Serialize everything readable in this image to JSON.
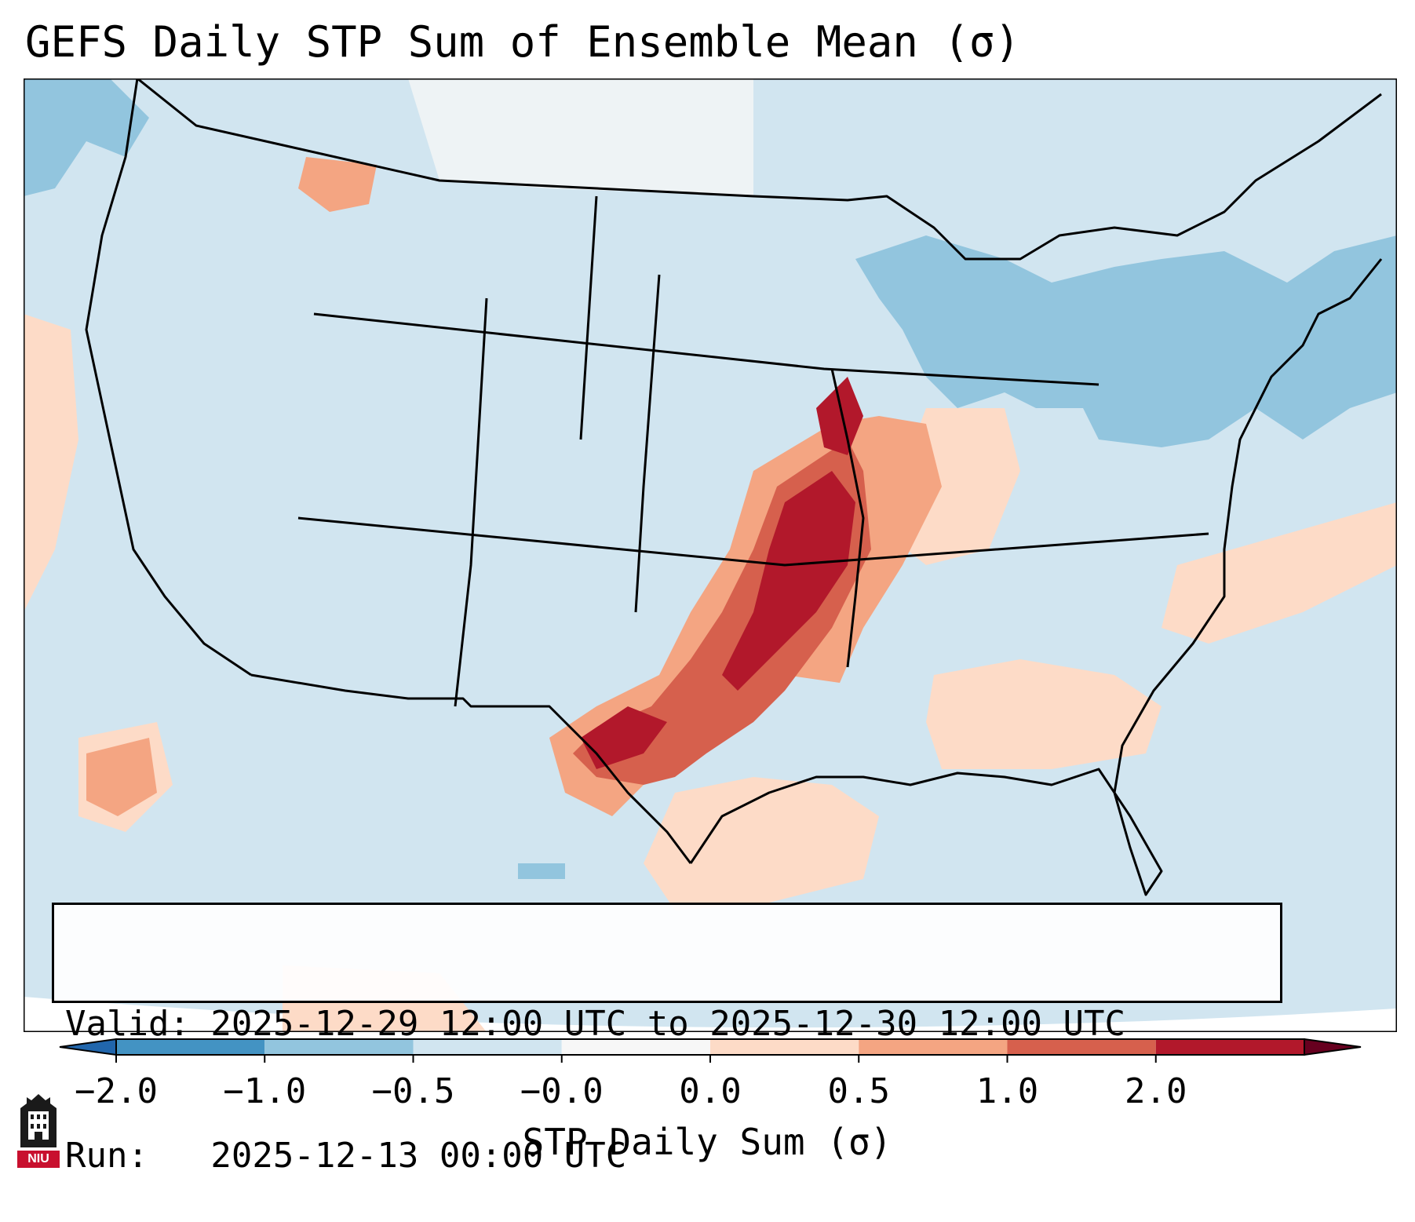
{
  "title": "GEFS Daily STP Sum of Ensemble Mean (σ)",
  "info": {
    "valid_line": "Valid: 2025-12-29 12:00 UTC to 2025-12-30 12:00 UTC",
    "run_line": "Run:   2025-12-13 00:00 UTC"
  },
  "colorbar": {
    "label": "STP Daily Sum (σ)",
    "ticks": [
      "−2.0",
      "−1.0",
      "−0.5",
      "−0.0",
      "0.0",
      "0.5",
      "1.0",
      "2.0"
    ],
    "colors": [
      "#4393c3",
      "#92c5de",
      "#d1e5f0",
      "#f7f7f7",
      "#fddbc7",
      "#f4a582",
      "#d6604d",
      "#b2182b"
    ],
    "under_color": "#2166ac",
    "over_color": "#67001f"
  },
  "map": {
    "background_color": "#d1e5f0",
    "border_color": "#000000",
    "regions": [
      {
        "name": "high-stp-core",
        "level": "2.0"
      },
      {
        "name": "moderate-stp",
        "level": "1.0"
      },
      {
        "name": "low-stp",
        "level": "0.5"
      },
      {
        "name": "negative-great-lakes",
        "level": "-0.5"
      }
    ]
  },
  "logo": {
    "text": "NIU"
  }
}
